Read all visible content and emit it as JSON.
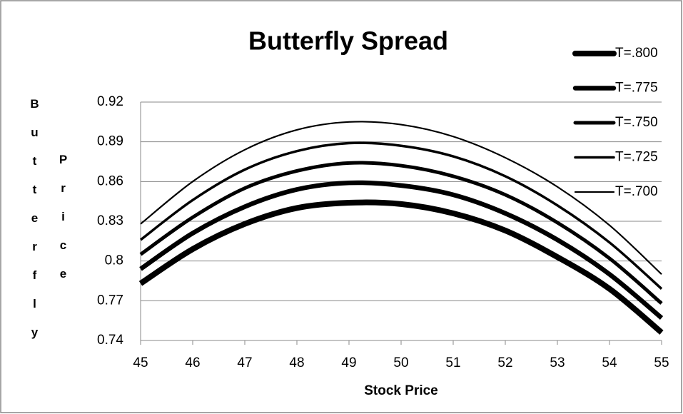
{
  "chart_data": {
    "type": "line",
    "title": "Butterfly Spread",
    "xlabel": "Stock Price",
    "ylabel": [
      "Butterfly",
      "Price"
    ],
    "x": [
      45,
      46,
      47,
      48,
      49,
      50,
      51,
      52,
      53,
      54,
      55
    ],
    "xlim": [
      45,
      55
    ],
    "xticks": [
      45,
      46,
      47,
      48,
      49,
      50,
      51,
      52,
      53,
      54,
      55
    ],
    "ylim": [
      0.74,
      0.92
    ],
    "yticks": [
      0.74,
      0.77,
      {
        "value": 0.8,
        "label": "0.8"
      },
      0.83,
      0.86,
      0.89,
      0.92
    ],
    "grid": true,
    "legend": "right",
    "series": [
      {
        "name": "T=.800",
        "color": "#000000",
        "values": [
          0.783,
          0.809,
          0.828,
          0.84,
          0.844,
          0.843,
          0.836,
          0.823,
          0.803,
          0.779,
          0.746
        ]
      },
      {
        "name": "T=.775",
        "color": "#000000",
        "values": [
          0.794,
          0.821,
          0.841,
          0.854,
          0.859,
          0.857,
          0.85,
          0.836,
          0.816,
          0.79,
          0.757
        ]
      },
      {
        "name": "T=.750",
        "color": "#000000",
        "values": [
          0.805,
          0.833,
          0.855,
          0.868,
          0.874,
          0.872,
          0.864,
          0.85,
          0.829,
          0.802,
          0.768
        ]
      },
      {
        "name": "T=.725",
        "color": "#000000",
        "values": [
          0.816,
          0.846,
          0.869,
          0.883,
          0.889,
          0.887,
          0.879,
          0.864,
          0.842,
          0.814,
          0.779
        ]
      },
      {
        "name": "T=.700",
        "color": "#000000",
        "values": [
          0.828,
          0.86,
          0.884,
          0.899,
          0.905,
          0.903,
          0.894,
          0.878,
          0.856,
          0.827,
          0.79
        ]
      }
    ]
  }
}
